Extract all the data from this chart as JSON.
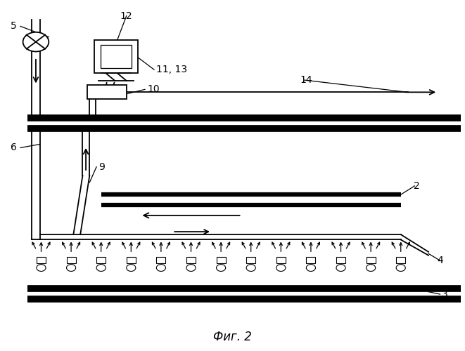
{
  "fig_width": 6.61,
  "fig_height": 5.0,
  "dpi": 100,
  "bg_color": "#ffffff",
  "line_color": "#000000",
  "thick_lw": 7,
  "thin_lw": 1.3,
  "med_lw": 4.5,
  "caption": "Фиг. 2",
  "label_fontsize": 10,
  "xlim": [
    0,
    1
  ],
  "ylim": [
    0,
    1
  ]
}
